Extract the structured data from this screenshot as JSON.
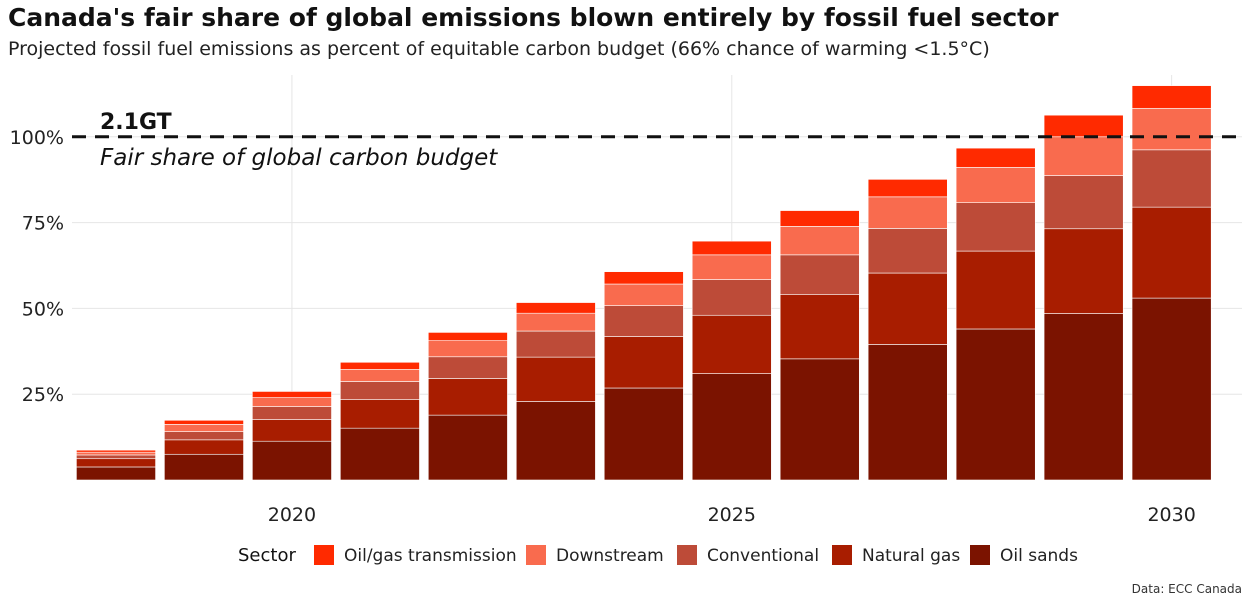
{
  "title": "Canada's fair share of global emissions blown entirely by fossil fuel sector",
  "subtitle": "Projected fossil fuel emissions as percent of equitable carbon budget (66% chance of warming <1.5°C)",
  "source": "Data: ECC Canada",
  "chart_data": {
    "type": "bar",
    "stacked": true,
    "x": [
      2018,
      2019,
      2020,
      2021,
      2022,
      2023,
      2024,
      2025,
      2026,
      2027,
      2028,
      2029,
      2030
    ],
    "xticks": [
      2020,
      2025,
      2030
    ],
    "xtick_labels": [
      "2020",
      "2025",
      "2030"
    ],
    "yticks": [
      25,
      50,
      75,
      100
    ],
    "ytick_labels": [
      "25%",
      "50%",
      "75%",
      "100%"
    ],
    "ylim": [
      0,
      118
    ],
    "xlim": [
      2017.5,
      2030.8
    ],
    "grid": true,
    "legend_title": "Sector",
    "legend_position": "bottom",
    "series": [
      {
        "name": "Oil sands",
        "color": "#7b1300",
        "values": [
          3.8,
          7.5,
          11.3,
          15.1,
          18.9,
          22.9,
          26.8,
          31.0,
          35.3,
          39.5,
          44.0,
          48.5,
          53.0
        ]
      },
      {
        "name": "Natural gas",
        "color": "#a81d00",
        "values": [
          2.4,
          4.2,
          6.3,
          8.4,
          10.7,
          12.9,
          15.0,
          17.0,
          18.8,
          20.8,
          22.7,
          24.7,
          26.5
        ]
      },
      {
        "name": "Conventional",
        "color": "#bd4b38",
        "values": [
          1.1,
          2.4,
          3.8,
          5.2,
          6.3,
          7.6,
          9.0,
          10.4,
          11.5,
          13.0,
          14.1,
          15.5,
          16.7
        ]
      },
      {
        "name": "Downstream",
        "color": "#f96b4e",
        "values": [
          0.8,
          2.1,
          2.6,
          3.5,
          4.7,
          5.2,
          6.3,
          7.2,
          8.3,
          9.2,
          10.3,
          11.3,
          12.1
        ]
      },
      {
        "name": "Oil/gas transmission",
        "color": "#ff2a00",
        "values": [
          0.6,
          1.2,
          1.8,
          2.1,
          2.4,
          3.1,
          3.6,
          4.0,
          4.6,
          5.1,
          5.6,
          6.3,
          6.6
        ]
      }
    ],
    "legend_order": [
      "Oil/gas transmission",
      "Downstream",
      "Conventional",
      "Natural gas",
      "Oil sands"
    ],
    "reference_line": {
      "y": 100,
      "style": "dashed",
      "label_top": "2.1GT",
      "label_bottom": "Fair share of global carbon budget"
    }
  }
}
